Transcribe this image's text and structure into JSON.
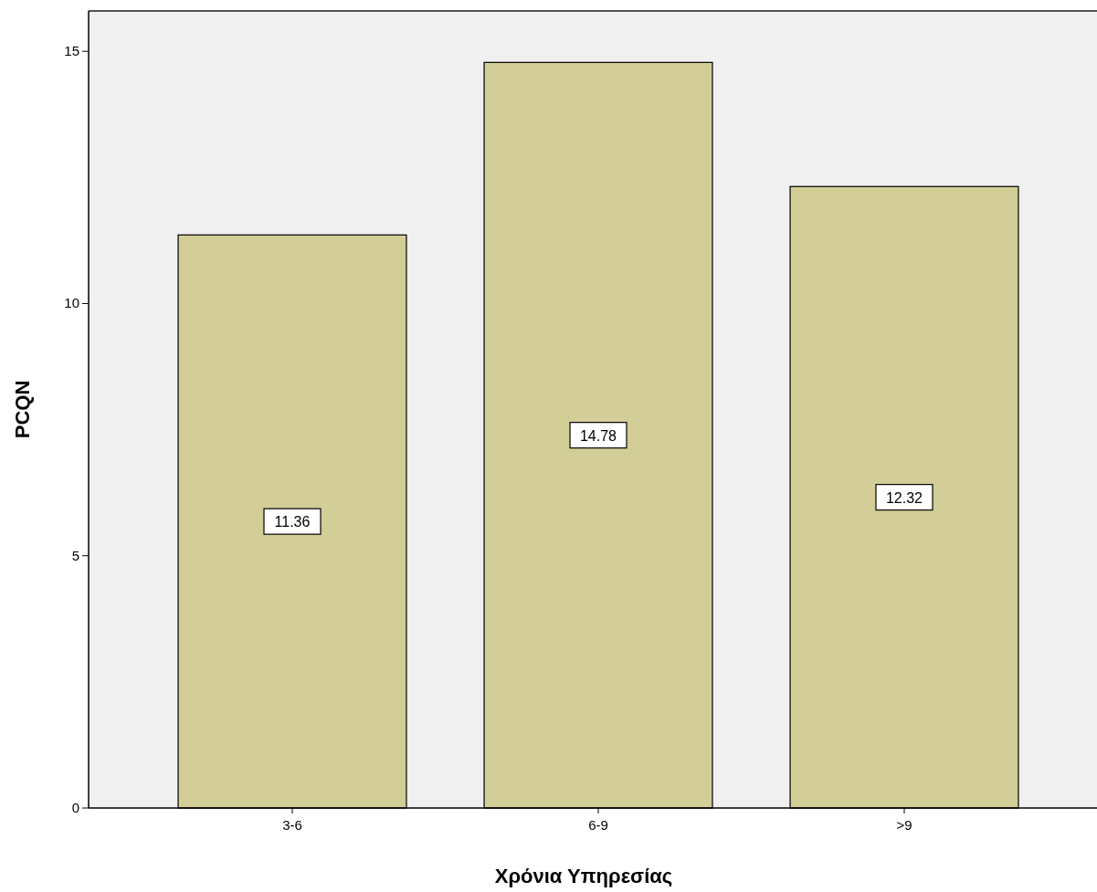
{
  "chart_data": {
    "type": "bar",
    "xlabel": "Χρόνια Υπηρεσίας",
    "ylabel": "PCQN",
    "categories": [
      "3-6",
      "6-9",
      ">9"
    ],
    "values": [
      11.36,
      14.78,
      12.32
    ],
    "color": "#d3cd98",
    "ylim": [
      0,
      15.8
    ],
    "yticks": [
      0,
      5,
      10,
      15
    ],
    "grid": false,
    "data_labels": true
  }
}
